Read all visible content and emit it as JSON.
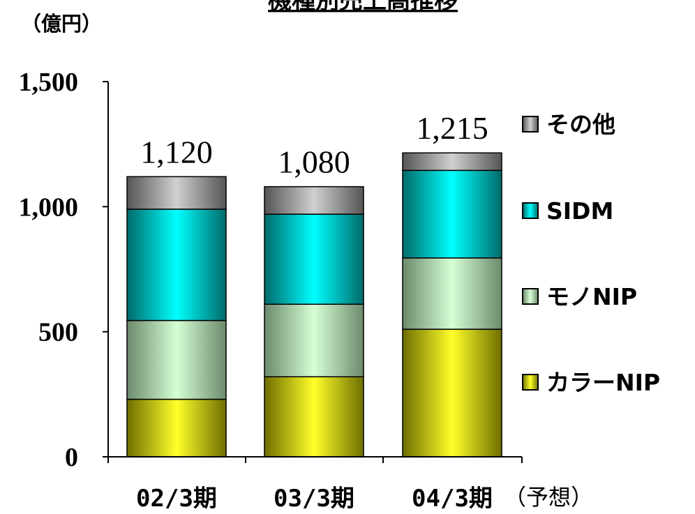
{
  "unit_label": "（億円）",
  "title": "機種別売上高推移",
  "x_note": "（予想）",
  "colors": {
    "カラーNIP": [
      "#6e6e00",
      "#ffff2a"
    ],
    "モノNIP": [
      "#6c8a6c",
      "#d6ffd6"
    ],
    "SIDM": [
      "#006a6a",
      "#00ffff"
    ],
    "その他": [
      "#555555",
      "#d0d0d0"
    ]
  },
  "chart_data": {
    "type": "bar",
    "stacked": true,
    "categories": [
      "02/3期",
      "03/3期",
      "04/3期"
    ],
    "series": [
      {
        "name": "カラーNIP",
        "values": [
          230,
          320,
          510
        ]
      },
      {
        "name": "モノNIP",
        "values": [
          315,
          290,
          285
        ]
      },
      {
        "name": "SIDM",
        "values": [
          445,
          360,
          350
        ]
      },
      {
        "name": "その他",
        "values": [
          130,
          110,
          70
        ]
      }
    ],
    "totals": [
      "1,120",
      "1,080",
      "1,215"
    ],
    "yticks": [
      {
        "value": 0,
        "label": "0"
      },
      {
        "value": 500,
        "label": "500"
      },
      {
        "value": 1000,
        "label": "1,000"
      },
      {
        "value": 1500,
        "label": "1,500"
      }
    ],
    "ylim": [
      0,
      1500
    ],
    "legend_position": "right",
    "grid": false
  }
}
